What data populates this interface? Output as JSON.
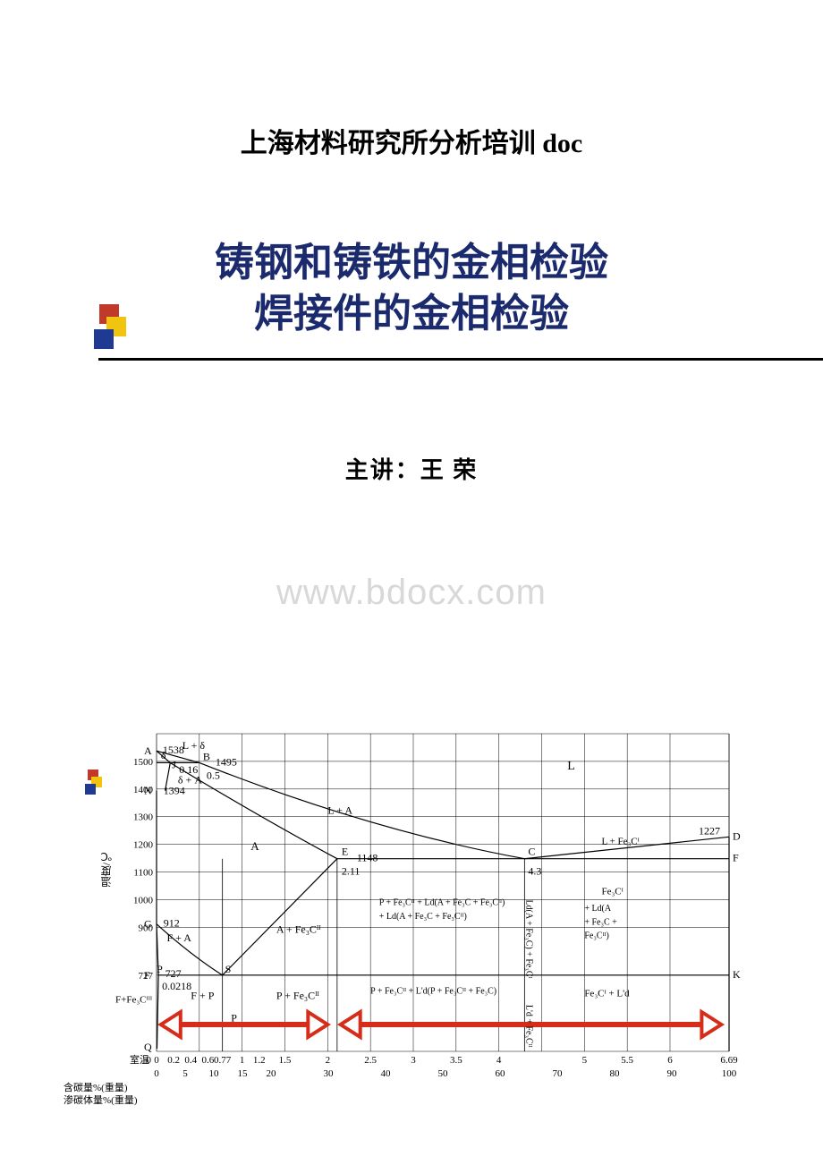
{
  "page": {
    "title": "上海材料研究所分析培训 doc",
    "slide_title_line1": "铸钢和铸铁的金相检验",
    "slide_title_line2": "焊接件的金相检验",
    "presenter": "主讲：王 荣",
    "watermark": "www.bdocx.com",
    "colors": {
      "title_text": "#1a2a6c",
      "accent_red": "#c0392b",
      "accent_yellow": "#f1c40f",
      "accent_blue": "#1f3a93",
      "arrow_red": "#d62c1a",
      "grid": "#000000",
      "background": "#ffffff",
      "watermark": "#d8d8d8"
    }
  },
  "diagram": {
    "type": "phase-diagram",
    "label_fontsize": 11,
    "y_axis_label": "温度/℃",
    "x_axis_label_carbon": "含碳量%(重量)",
    "x_axis_label_cementite": "渗碳体量%(重量)",
    "room_temp_label": "室温",
    "y_ticks": [
      727,
      900,
      1000,
      1100,
      1200,
      1300,
      1400,
      1500
    ],
    "y_raw_values": {
      "A_peritectic": 1538,
      "B_peritectic": 1495,
      "N": 1394,
      "C_eutectic_temp": 1227,
      "E_eutectic_temp": 1148,
      "G_A3": 912,
      "S_eutectoid": 727
    },
    "x_carbon_ticks": [
      0,
      0.2,
      0.4,
      0.6,
      0.77,
      1.0,
      1.2,
      1.5,
      2.0,
      2.5,
      3.0,
      3.5,
      4.0,
      5.0,
      5.5,
      6.0,
      6.69
    ],
    "x_cementite_ticks": [
      0,
      5,
      10,
      15,
      20,
      30,
      40,
      50,
      60,
      70,
      80,
      90,
      100
    ],
    "special_x": {
      "J": 0.16,
      "B": 0.5,
      "P": 0.0218,
      "S_eutectoid_x": 0.77,
      "E": 2.11,
      "C": 4.3,
      "F_K_right": 6.69
    },
    "point_labels": {
      "A": "A",
      "B": "B",
      "C": "C",
      "D": "D",
      "E": "E",
      "F": "F",
      "G": "G",
      "J": "J",
      "K": "K",
      "N": "N",
      "P": "P",
      "Q": "Q",
      "S": "S"
    },
    "region_labels": {
      "L": "L",
      "L_delta": "L + δ",
      "delta": "δ",
      "delta_A": "δ + A",
      "L_A": "L + A",
      "A": "A",
      "F_A": "F + A",
      "A_Fe3C_II": "A + Fe₃Cᴵᴵ",
      "L_Fe3C_I": "L + Fe₃Cᴵ",
      "Fe3C_I": "Fe₃Cᴵ",
      "P_Fe3C_Ld": "P + Fe₃Cᴵᴵ + Ld(A + Fe₃C + Fe₃Cᴵᴵ)",
      "Ld_A_Fe3C": "Ld(A + Fe₃C) + Fe₃Cᴵ",
      "Fe3C_Ld_low": "+ Ld(A + Fe₃C + Fe₃Cᴵᴵ)",
      "F_Fe3C_III": "F+Fe₃Cᴵᴵᴵ",
      "F_P": "F + P",
      "P_alone": "P",
      "P_Fe3C_II": "P + Fe₃Cᴵᴵ",
      "P_Fe3C_Ld_prime": "P + Fe₃Cᴵᴵ + L'd(P + Fe₃Cᴵᴵ + Fe₃C)",
      "Fe3C_Ld_prime": "Fe₃Cᴵ + L'd",
      "Ld_prime": "L'd + Fe₃Cᴵᴵ",
      "F_label": "F"
    }
  }
}
